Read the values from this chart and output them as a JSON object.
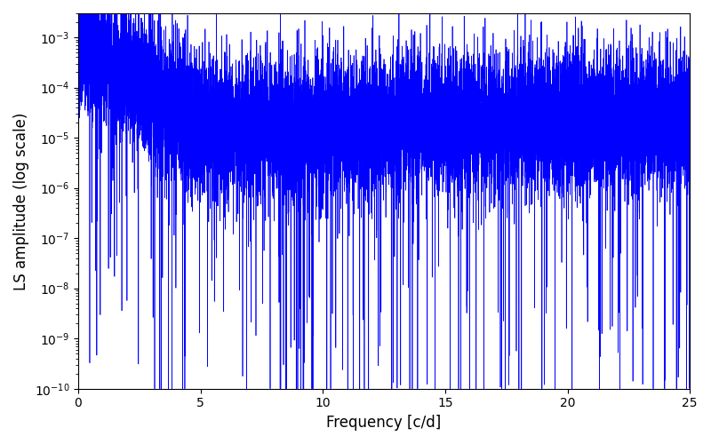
{
  "xlabel": "Frequency [c/d]",
  "ylabel": "LS amplitude (log scale)",
  "xlim": [
    0,
    25
  ],
  "ylim": [
    1e-10,
    0.003
  ],
  "line_color": "#0000ff",
  "line_width": 0.5,
  "n_points": 12000,
  "freq_max": 25.0,
  "seed": 7,
  "figsize": [
    8.0,
    5.0
  ],
  "dpi": 100,
  "background_color": "#ffffff",
  "tick_labelsize": 10,
  "xlabel_fontsize": 12,
  "ylabel_fontsize": 12
}
